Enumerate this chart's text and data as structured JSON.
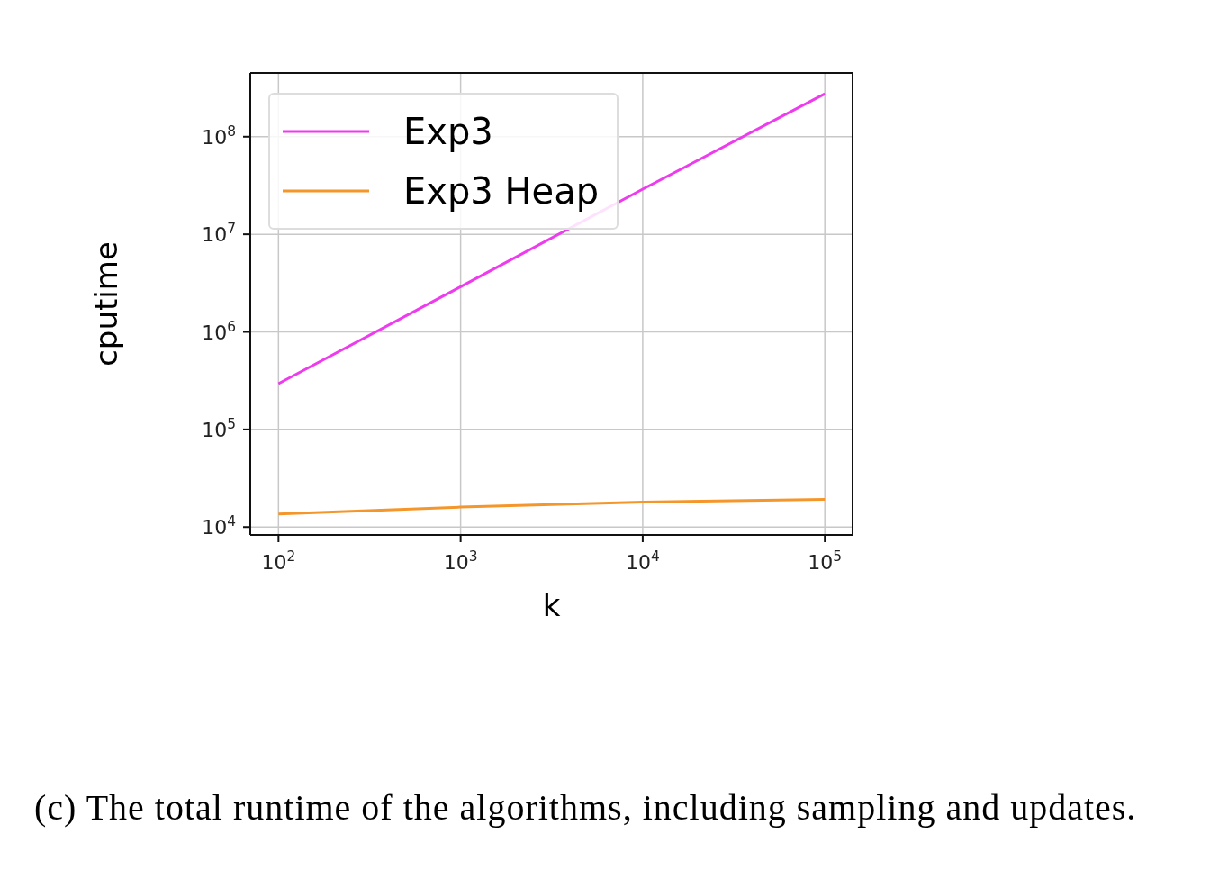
{
  "chart_data": {
    "type": "line",
    "xlabel": "k",
    "ylabel": "cputime",
    "x": [
      100,
      1000,
      10000,
      100000
    ],
    "series": [
      {
        "name": "Exp3",
        "color": "#ee3bee",
        "values": [
          295000,
          2900000,
          29000000,
          275000000
        ]
      },
      {
        "name": "Exp3 Heap",
        "color": "#f5962a",
        "values": [
          13600,
          16000,
          18000,
          19200
        ]
      }
    ],
    "log": "xy",
    "xlim": [
      70,
      142000
    ],
    "ylim": [
      8300,
      450000000
    ],
    "xticks": [
      {
        "value": 100,
        "label": "10$^{2}$"
      },
      {
        "value": 1000,
        "label": "10$^{3}$"
      },
      {
        "value": 10000,
        "label": "10$^{4}$"
      },
      {
        "value": 100000,
        "label": "10$^{5}$"
      }
    ],
    "yticks": [
      {
        "value": 10000,
        "label": "10$^{4}$"
      },
      {
        "value": 100000,
        "label": "10$^{5}$"
      },
      {
        "value": 1000000,
        "label": "10$^{6}$"
      },
      {
        "value": 10000000,
        "label": "10$^{7}$"
      },
      {
        "value": 100000000,
        "label": "10$^{8}$"
      }
    ],
    "grid": true,
    "legend": "top left",
    "line_style": "solid",
    "marker": "none",
    "annotations": [
      "(c) The total runtime of the algorithms, including sampling and updates."
    ]
  }
}
